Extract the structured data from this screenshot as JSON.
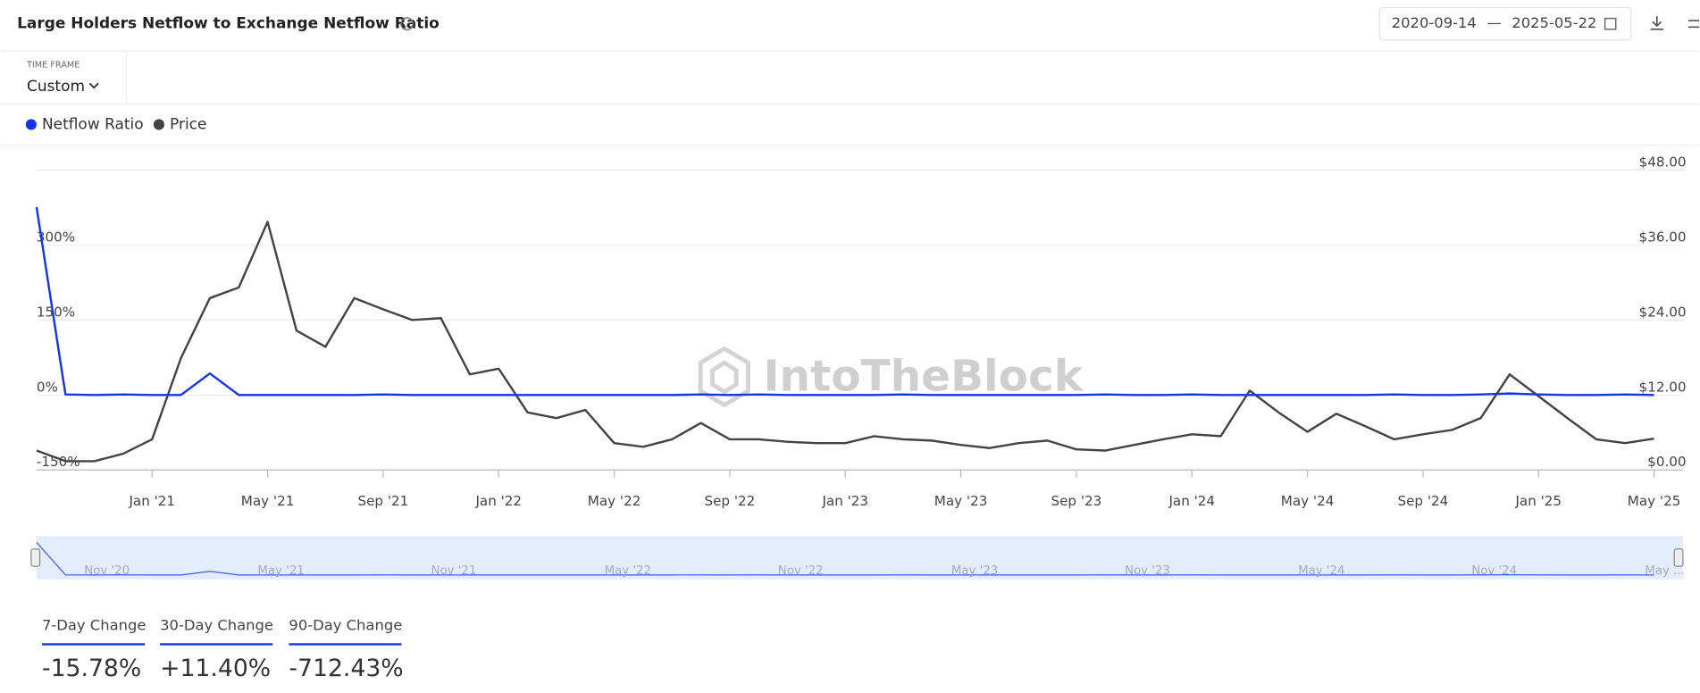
{
  "header": {
    "title": "Large Holders Netflow to Exchange Netflow Ratio",
    "date_from": "2020-09-14",
    "date_separator": "—",
    "date_to": "2025-05-22",
    "time_frame_label": "TIME FRAME",
    "time_frame": "Custom"
  },
  "watermark": "IntoTheBlock",
  "chart_data": {
    "type": "line",
    "x": [
      "2020-09",
      "2020-10",
      "2020-11",
      "2020-12",
      "2021-01",
      "2021-02",
      "2021-03",
      "2021-04",
      "2021-05",
      "2021-06",
      "2021-07",
      "2021-08",
      "2021-09",
      "2021-10",
      "2021-11",
      "2021-12",
      "2022-01",
      "2022-02",
      "2022-03",
      "2022-04",
      "2022-05",
      "2022-06",
      "2022-07",
      "2022-08",
      "2022-09",
      "2022-10",
      "2022-11",
      "2022-12",
      "2023-01",
      "2023-02",
      "2023-03",
      "2023-04",
      "2023-05",
      "2023-06",
      "2023-07",
      "2023-08",
      "2023-09",
      "2023-10",
      "2023-11",
      "2023-12",
      "2024-01",
      "2024-02",
      "2024-03",
      "2024-04",
      "2024-05",
      "2024-06",
      "2024-07",
      "2024-08",
      "2024-09",
      "2024-10",
      "2024-11",
      "2024-12",
      "2025-01",
      "2025-02",
      "2025-03",
      "2025-04",
      "2025-05"
    ],
    "series": [
      {
        "name": "Netflow Ratio",
        "color": "#1436e6",
        "axis": "y",
        "values": [
          376,
          1,
          0,
          1,
          0,
          0,
          43,
          0,
          0,
          0,
          0,
          0,
          1,
          0,
          0,
          0,
          0,
          0,
          0,
          0,
          0,
          0,
          0,
          1,
          0,
          1,
          0,
          0,
          0,
          0,
          1,
          0,
          0,
          0,
          0,
          0,
          0,
          1,
          0,
          0,
          1,
          0,
          0,
          0,
          0,
          0,
          0,
          1,
          0,
          0,
          1,
          3,
          1,
          0,
          0,
          1,
          0
        ]
      },
      {
        "name": "Price",
        "color": "#444444",
        "axis": "y2",
        "values": [
          3.1,
          1.4,
          1.4,
          2.6,
          4.9,
          17.9,
          27.5,
          29.2,
          39.7,
          22.3,
          19.7,
          27.5,
          25.7,
          24.0,
          24.3,
          15.3,
          16.2,
          9.2,
          8.3,
          9.6,
          4.3,
          3.7,
          4.9,
          7.5,
          4.9,
          4.9,
          4.5,
          4.3,
          4.3,
          5.4,
          4.9,
          4.7,
          4.0,
          3.5,
          4.3,
          4.7,
          3.3,
          3.1,
          4.0,
          4.9,
          5.7,
          5.4,
          12.7,
          9.2,
          6.1,
          9.0,
          7.0,
          4.9,
          5.7,
          6.4,
          8.3,
          15.3,
          11.8,
          8.3,
          4.9,
          4.3,
          5.0
        ]
      }
    ],
    "xlim": [
      "2020-09",
      "2025-06"
    ],
    "xticks": [
      {
        "value": "2021-01",
        "label": "Jan '21"
      },
      {
        "value": "2021-05",
        "label": "May '21"
      },
      {
        "value": "2021-09",
        "label": "Sep '21"
      },
      {
        "value": "2022-01",
        "label": "Jan '22"
      },
      {
        "value": "2022-05",
        "label": "May '22"
      },
      {
        "value": "2022-09",
        "label": "Sep '22"
      },
      {
        "value": "2023-01",
        "label": "Jan '23"
      },
      {
        "value": "2023-05",
        "label": "May '23"
      },
      {
        "value": "2023-09",
        "label": "Sep '23"
      },
      {
        "value": "2024-01",
        "label": "Jan '24"
      },
      {
        "value": "2024-05",
        "label": "May '24"
      },
      {
        "value": "2024-09",
        "label": "Sep '24"
      },
      {
        "value": "2025-01",
        "label": "Jan '25"
      },
      {
        "value": "2025-05",
        "label": "May '25"
      }
    ],
    "ylim": [
      -150,
      450
    ],
    "yticks": [
      {
        "value": -150,
        "label": "-150%"
      },
      {
        "value": 0,
        "label": "0%"
      },
      {
        "value": 150,
        "label": "150%"
      },
      {
        "value": 300,
        "label": "300%"
      }
    ],
    "y2lim": [
      0,
      48
    ],
    "y2ticks": [
      {
        "value": 0,
        "label": "$0.00"
      },
      {
        "value": 12,
        "label": "$12.00"
      },
      {
        "value": 24,
        "label": "$24.00"
      },
      {
        "value": 36,
        "label": "$36.00"
      },
      {
        "value": 48,
        "label": "$48.00"
      }
    ],
    "grid": true,
    "legend": "top-left",
    "navigator_labels": [
      "Nov '20",
      "May '21",
      "Nov '21",
      "May '22",
      "Nov '22",
      "May '23",
      "Nov '23",
      "May '24",
      "Nov '24",
      "May ..."
    ]
  },
  "stats": [
    {
      "label": "7-Day Change",
      "value": "-15.78%"
    },
    {
      "label": "30-Day Change",
      "value": "+11.40%"
    },
    {
      "label": "90-Day Change",
      "value": "-712.43%"
    }
  ]
}
